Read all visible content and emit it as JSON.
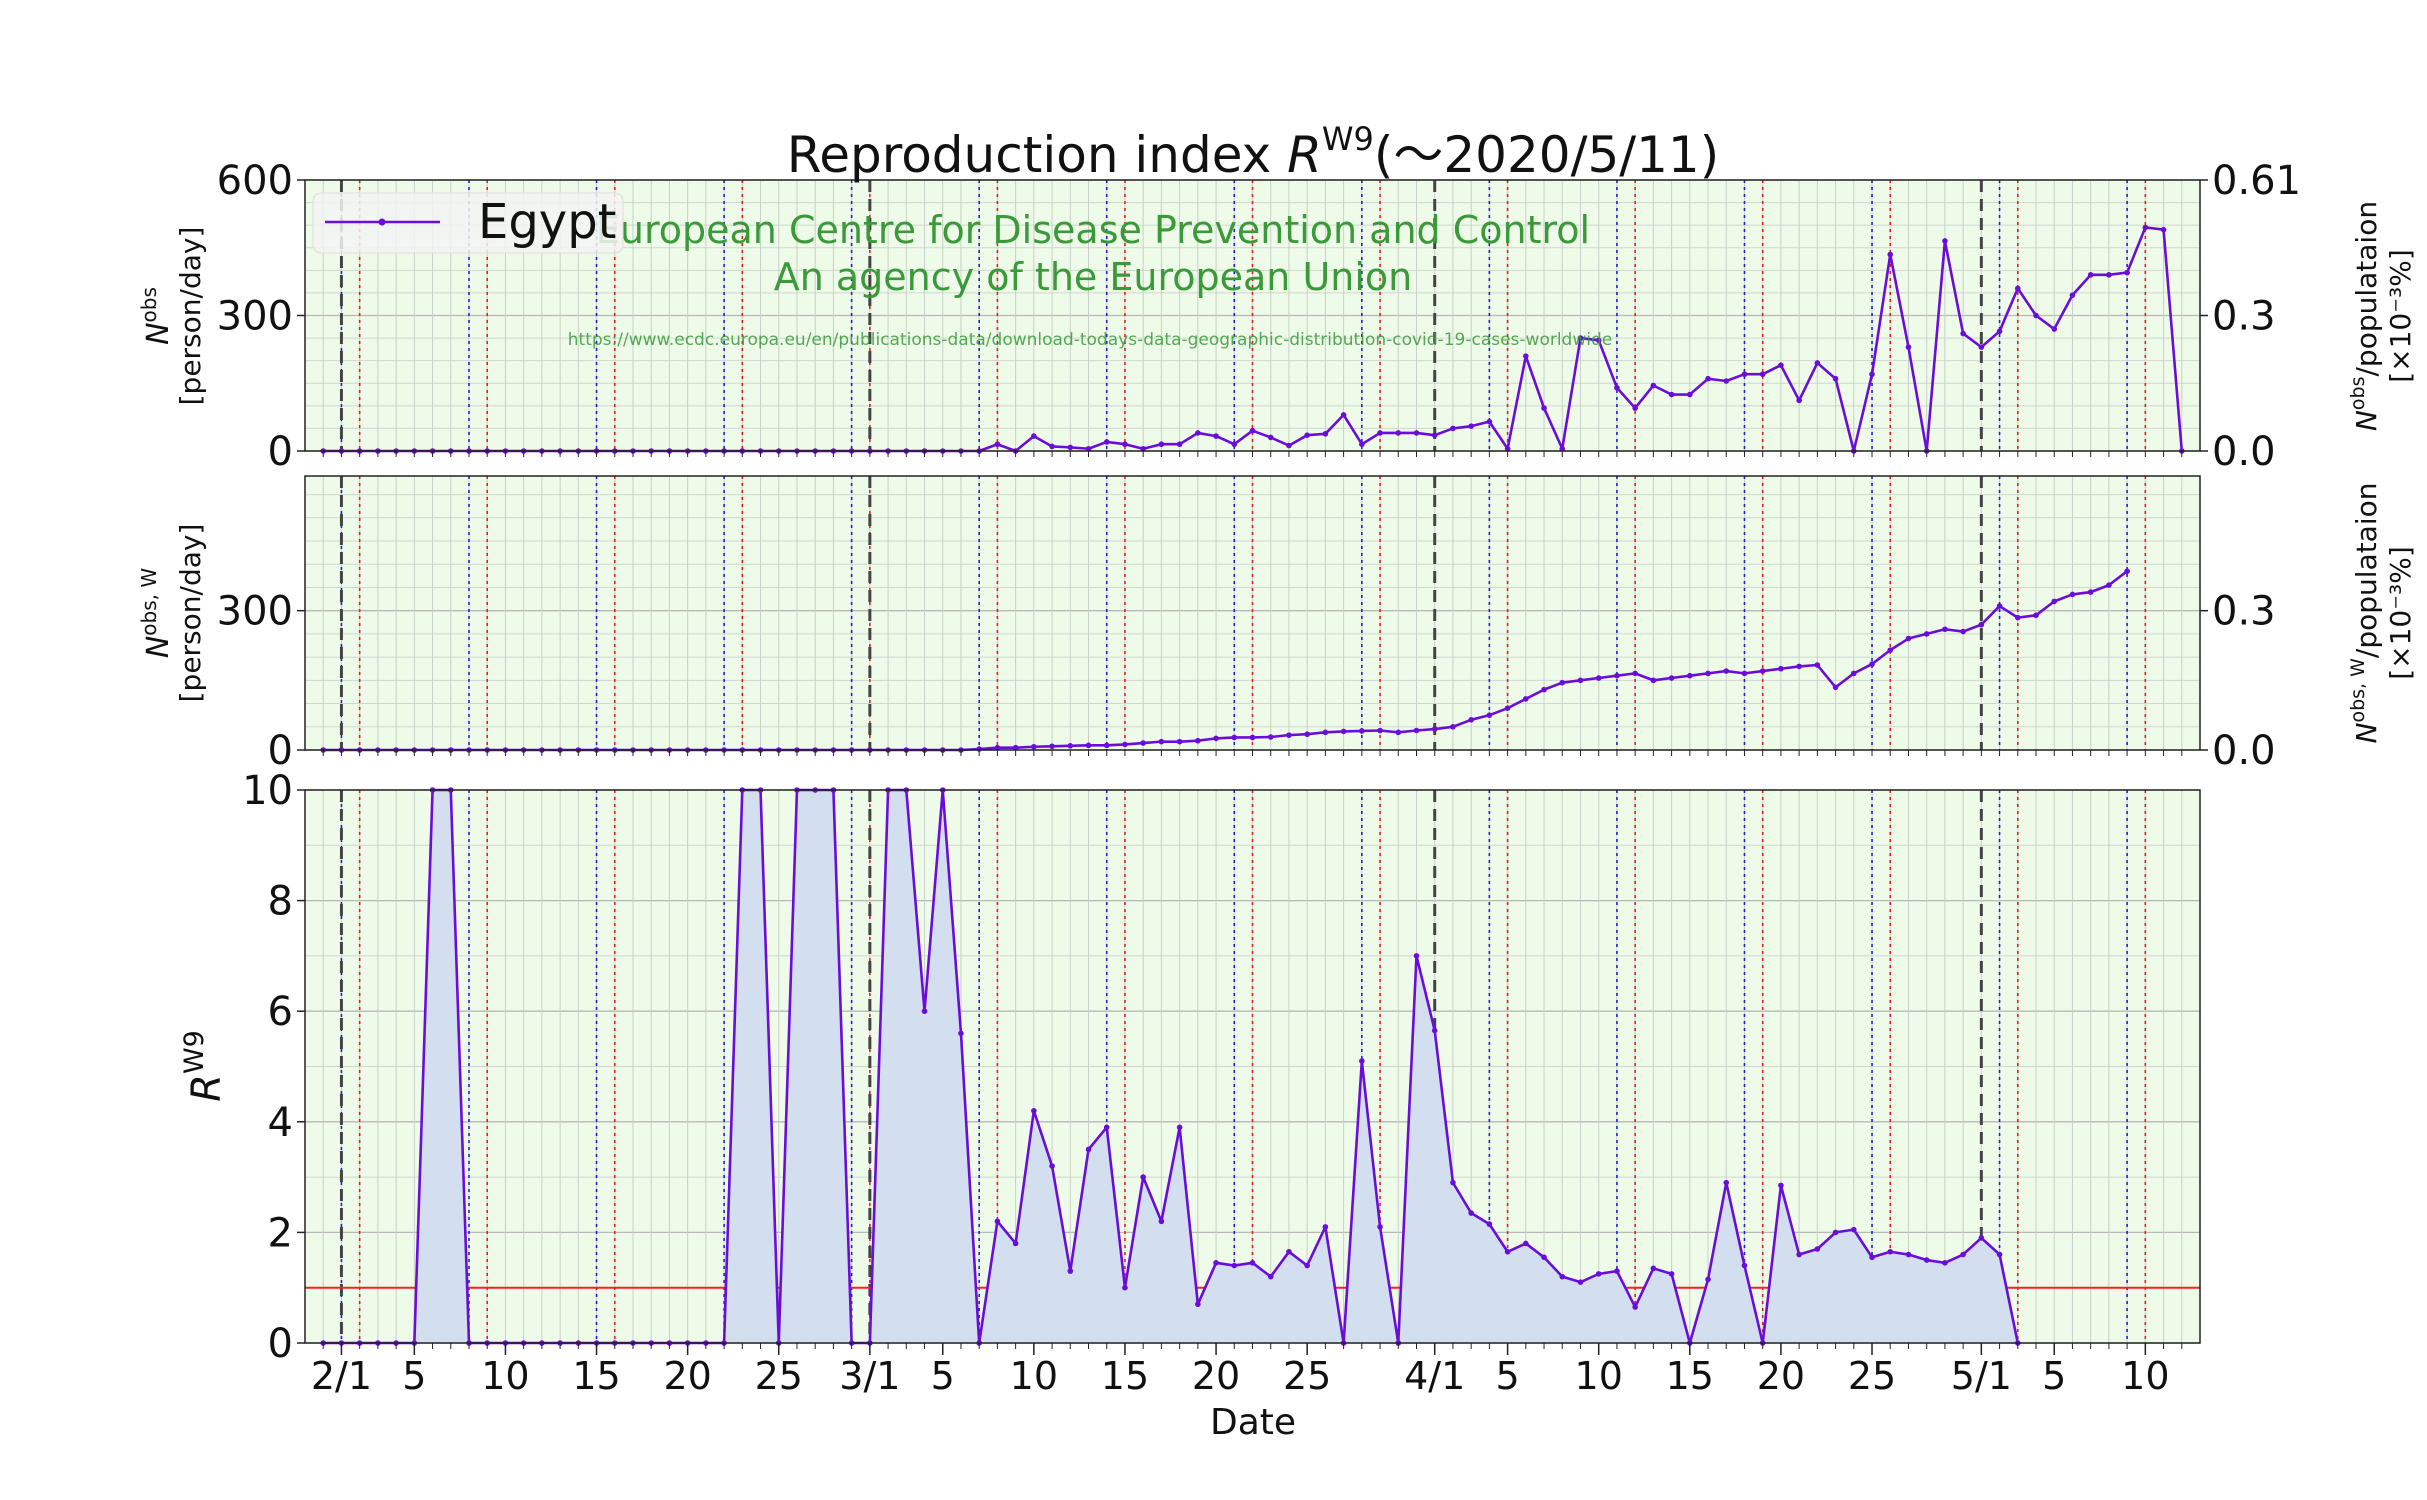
{
  "title_main": "Reproduction index ",
  "title_r": "R",
  "title_sup": "W9",
  "title_tail": "(〜2020/5/11)",
  "legend_label": "Egypt",
  "source": {
    "line1": "European Centre for Disease Prevention and Control",
    "line2": "An agency of the European Union",
    "url": "https://www.ecdc.europa.eu/en/publications-data/download-todays-data-geographic-distribution-covid-19-cases-worldwide"
  },
  "colors": {
    "series": "#6a0ddb",
    "plot_bg": "#eefbe9",
    "fill": "#d3deef",
    "threshold": "#ff2020",
    "sunday": "#e02020",
    "saturday": "#2020d0",
    "month": "#444444",
    "source_text": "#3a9a3a"
  },
  "xlabel": "Date",
  "x_ticks": [
    {
      "day": 1,
      "label": "2/1"
    },
    {
      "day": 5,
      "label": "5"
    },
    {
      "day": 10,
      "label": "10"
    },
    {
      "day": 15,
      "label": "15"
    },
    {
      "day": 20,
      "label": "20"
    },
    {
      "day": 25,
      "label": "25"
    },
    {
      "day": 30,
      "label": "3/1"
    },
    {
      "day": 34,
      "label": "5"
    },
    {
      "day": 39,
      "label": "10"
    },
    {
      "day": 44,
      "label": "15"
    },
    {
      "day": 49,
      "label": "20"
    },
    {
      "day": 54,
      "label": "25"
    },
    {
      "day": 61,
      "label": "4/1"
    },
    {
      "day": 65,
      "label": "5"
    },
    {
      "day": 70,
      "label": "10"
    },
    {
      "day": 75,
      "label": "15"
    },
    {
      "day": 80,
      "label": "20"
    },
    {
      "day": 85,
      "label": "25"
    },
    {
      "day": 91,
      "label": "5/1"
    },
    {
      "day": 95,
      "label": "5"
    },
    {
      "day": 100,
      "label": "10"
    }
  ],
  "month_starts": [
    1,
    30,
    61,
    91
  ],
  "panels": {
    "top": {
      "ylabel_sym": "N",
      "ylabel_sup": "obs",
      "ylabel_unit": "[person/day]",
      "right_label_sym": "N",
      "right_label_sup": "obs",
      "right_label_rest": "/populataion",
      "right_label_unit": "[×10⁻³%]",
      "yticks": [
        "0",
        "300",
        "600"
      ],
      "right_ticks": [
        "0.0",
        "0.3",
        "0.61"
      ],
      "ylim": [
        0,
        600
      ]
    },
    "middle": {
      "ylabel_sym": "N",
      "ylabel_sup": "obs, W",
      "ylabel_unit": "[person/day]",
      "right_label_sym": "N",
      "right_label_sup": "obs, W",
      "right_label_rest": "/populataion",
      "right_label_unit": "[×10⁻³%]",
      "yticks": [
        "0",
        "300"
      ],
      "right_ticks": [
        "0.0",
        "0.3"
      ],
      "ylim": [
        0,
        590
      ]
    },
    "bottom": {
      "ylabel_sym": "R",
      "ylabel_sup": "W9",
      "yticks": [
        "0",
        "2",
        "4",
        "6",
        "8",
        "10"
      ],
      "ylim": [
        0,
        10
      ],
      "threshold": 1
    }
  },
  "chart_data": [
    {
      "type": "line",
      "title": "Reproduction index R^W9 (〜2020/5/11)",
      "ylabel": "N^obs [person/day]",
      "y2label": "N^obs/populataion [×10⁻³%]",
      "ylim": [
        0,
        600
      ],
      "x_start": "2020-01-31",
      "series": [
        {
          "name": "Egypt",
          "values": [
            0,
            0,
            0,
            0,
            0,
            0,
            0,
            0,
            0,
            0,
            0,
            0,
            0,
            0,
            0,
            0,
            0,
            0,
            0,
            0,
            0,
            0,
            0,
            0,
            0,
            0,
            0,
            0,
            0,
            0,
            0,
            0,
            0,
            0,
            0,
            0,
            0,
            15,
            0,
            33,
            10,
            8,
            5,
            20,
            15,
            5,
            15,
            15,
            40,
            33,
            15,
            45,
            30,
            12,
            35,
            38,
            80,
            15,
            40,
            40,
            40,
            35,
            50,
            55,
            65,
            5,
            210,
            95,
            5,
            250,
            245,
            140,
            95,
            145,
            125,
            125,
            160,
            155,
            170,
            170,
            190,
            112,
            195,
            160,
            0,
            170,
            435,
            230,
            0,
            465,
            260,
            230,
            265,
            360,
            300,
            270,
            345,
            390,
            390,
            395,
            495,
            490,
            0
          ]
        }
      ]
    },
    {
      "type": "line",
      "ylabel": "N^obs,W [person/day]",
      "y2label": "N^obs,W/populataion [×10⁻³%]",
      "ylim": [
        0,
        590
      ],
      "x_start": "2020-01-31",
      "series": [
        {
          "name": "Egypt",
          "values": [
            0,
            0,
            0,
            0,
            0,
            0,
            0,
            0,
            0,
            0,
            0,
            0,
            0,
            0,
            0,
            0,
            0,
            0,
            0,
            0,
            0,
            0,
            0,
            0,
            0,
            0,
            0,
            0,
            0,
            0,
            0,
            0,
            0,
            0,
            0,
            0,
            2,
            5,
            5,
            7,
            8,
            9,
            10,
            10,
            12,
            15,
            18,
            18,
            20,
            25,
            27,
            27,
            28,
            32,
            34,
            38,
            40,
            41,
            42,
            38,
            42,
            45,
            50,
            65,
            75,
            90,
            110,
            130,
            145,
            150,
            155,
            160,
            165,
            150,
            155,
            160,
            165,
            170,
            165,
            170,
            175,
            180,
            183,
            135,
            165,
            185,
            215,
            240,
            250,
            260,
            255,
            270,
            310,
            285,
            290,
            320,
            335,
            340,
            355,
            385
          ]
        }
      ]
    },
    {
      "type": "area",
      "ylabel": "R^W9",
      "xlabel": "Date",
      "ylim": [
        0,
        10
      ],
      "threshold": 1,
      "x_start": "2020-01-31",
      "series": [
        {
          "name": "Egypt",
          "values": [
            0,
            0,
            0,
            0,
            0,
            0,
            10,
            10,
            0,
            0,
            0,
            0,
            0,
            0,
            0,
            0,
            0,
            0,
            0,
            0,
            0,
            0,
            0,
            10,
            10,
            0,
            10,
            10,
            10,
            0,
            0,
            10,
            10,
            6,
            10,
            5.6,
            0,
            2.2,
            1.8,
            4.2,
            3.2,
            1.3,
            3.5,
            3.9,
            1.0,
            3.0,
            2.2,
            3.9,
            0.7,
            1.45,
            1.4,
            1.45,
            1.2,
            1.65,
            1.4,
            2.1,
            0,
            5.1,
            2.1,
            0,
            7.0,
            5.65,
            2.9,
            2.35,
            2.15,
            1.65,
            1.8,
            1.55,
            1.2,
            1.1,
            1.25,
            1.3,
            0.65,
            1.35,
            1.25,
            0,
            1.15,
            2.9,
            1.4,
            0,
            2.85,
            1.6,
            1.7,
            2.0,
            2.05,
            1.55,
            1.65,
            1.6,
            1.5,
            1.45,
            1.6,
            1.9,
            1.6,
            0
          ]
        }
      ]
    }
  ]
}
